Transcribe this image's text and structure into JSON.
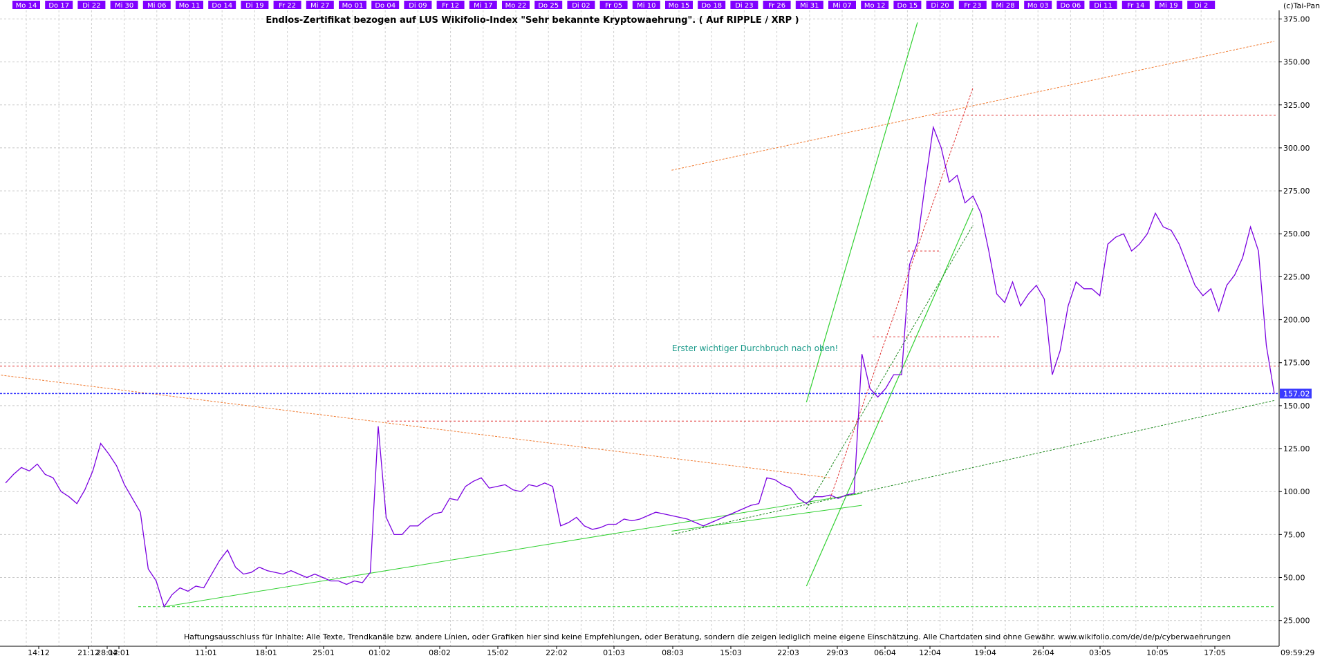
{
  "chart_data": {
    "type": "line",
    "title": "Endlos-Zertifikat bezogen auf LUS Wikifolio-Index \"Sehr bekannte Kryptowaehrung\". ( Auf RIPPLE / XRP )",
    "copyright": "(c)Tai-Pan",
    "annotation": "Erster wichtiger Durchbruch nach oben!",
    "disclaimer": "Haftungsausschluss für Inhalte: Alle Texte, Trendkanäle bzw. andere Linien, oder Grafiken hier sind keine Empfehlungen, oder Beratung, sondern die zeigen lediglich meine eigene Einschätzung. Alle Chartdaten sind ohne Gewähr.  www.wikifolio.com/de/de/p/cyberwaehrungen",
    "time_label": "09:59:29",
    "last_value_label": "157.02",
    "last_value": 157.02,
    "ylim": [
      10,
      380
    ],
    "y_ticks": [
      "25.000",
      "50.00",
      "75.00",
      "100.00",
      "125.00",
      "150.00",
      "175.00",
      "200.00",
      "225.00",
      "250.00",
      "275.00",
      "300.00",
      "325.00",
      "350.00",
      "375.00"
    ],
    "day_labels": [
      "Mo 14",
      "Do 17",
      "Di 22",
      "Mi 30",
      "Mi 06",
      "Mo 11",
      "Do 14",
      "Di 19",
      "Fr 22",
      "Mi 27",
      "Mo 01",
      "Do 04",
      "Di 09",
      "Fr 12",
      "Mi 17",
      "Mo 22",
      "Do 25",
      "Di 02",
      "Fr 05",
      "Mi 10",
      "Mo 15",
      "Do 18",
      "Di 23",
      "Fr 26",
      "Mi 31",
      "Mi 07",
      "Mo 12",
      "Do 15",
      "Di 20",
      "Fr 23",
      "Mi 28",
      "Mo 03",
      "Do 06",
      "Di 11",
      "Fr 14",
      "Mi 19",
      "Di 2"
    ],
    "date_labels": [
      "14:12",
      "21:12",
      "28:12",
      "04:01",
      "11:01",
      "18:01",
      "25:01",
      "01:02",
      "08:02",
      "15:02",
      "22:02",
      "01:03",
      "08:03",
      "15:03",
      "22:03",
      "29:03",
      "06:04",
      "12:04",
      "19:04",
      "26:04",
      "03:05",
      "10:05",
      "17:05"
    ],
    "x_index_range": [
      0,
      160
    ],
    "series": [
      {
        "values": [
          [
            0,
            105
          ],
          [
            1,
            110
          ],
          [
            2,
            114
          ],
          [
            3,
            112
          ],
          [
            4,
            116
          ],
          [
            5,
            110
          ],
          [
            6,
            108
          ],
          [
            7,
            100
          ],
          [
            8,
            97
          ],
          [
            9,
            93
          ],
          [
            10,
            101
          ],
          [
            11,
            112
          ],
          [
            12,
            128
          ],
          [
            13,
            122
          ],
          [
            14,
            115
          ],
          [
            15,
            104
          ],
          [
            16,
            96
          ],
          [
            17,
            88
          ],
          [
            18,
            55
          ],
          [
            19,
            48
          ],
          [
            20,
            33
          ],
          [
            21,
            40
          ],
          [
            22,
            44
          ],
          [
            23,
            42
          ],
          [
            24,
            45
          ],
          [
            25,
            44
          ],
          [
            26,
            52
          ],
          [
            27,
            60
          ],
          [
            28,
            66
          ],
          [
            29,
            56
          ],
          [
            30,
            52
          ],
          [
            31,
            53
          ],
          [
            32,
            56
          ],
          [
            33,
            54
          ],
          [
            34,
            53
          ],
          [
            35,
            52
          ],
          [
            36,
            54
          ],
          [
            37,
            52
          ],
          [
            38,
            50
          ],
          [
            39,
            52
          ],
          [
            40,
            50
          ],
          [
            41,
            48
          ],
          [
            42,
            48
          ],
          [
            43,
            46
          ],
          [
            44,
            48
          ],
          [
            45,
            47
          ],
          [
            46,
            53
          ],
          [
            47,
            138
          ],
          [
            48,
            85
          ],
          [
            49,
            75
          ],
          [
            50,
            75
          ],
          [
            51,
            80
          ],
          [
            52,
            80
          ],
          [
            53,
            84
          ],
          [
            54,
            87
          ],
          [
            55,
            88
          ],
          [
            56,
            96
          ],
          [
            57,
            95
          ],
          [
            58,
            103
          ],
          [
            59,
            106
          ],
          [
            60,
            108
          ],
          [
            61,
            102
          ],
          [
            62,
            103
          ],
          [
            63,
            104
          ],
          [
            64,
            101
          ],
          [
            65,
            100
          ],
          [
            66,
            104
          ],
          [
            67,
            103
          ],
          [
            68,
            105
          ],
          [
            69,
            103
          ],
          [
            70,
            80
          ],
          [
            71,
            82
          ],
          [
            72,
            85
          ],
          [
            73,
            80
          ],
          [
            74,
            78
          ],
          [
            75,
            79
          ],
          [
            76,
            81
          ],
          [
            77,
            81
          ],
          [
            78,
            84
          ],
          [
            79,
            83
          ],
          [
            80,
            84
          ],
          [
            81,
            86
          ],
          [
            82,
            88
          ],
          [
            83,
            87
          ],
          [
            84,
            86
          ],
          [
            85,
            85
          ],
          [
            86,
            84
          ],
          [
            87,
            82
          ],
          [
            88,
            80
          ],
          [
            89,
            82
          ],
          [
            90,
            84
          ],
          [
            91,
            86
          ],
          [
            92,
            88
          ],
          [
            93,
            90
          ],
          [
            94,
            92
          ],
          [
            95,
            93
          ],
          [
            96,
            108
          ],
          [
            97,
            107
          ],
          [
            98,
            104
          ],
          [
            99,
            102
          ],
          [
            100,
            96
          ],
          [
            101,
            93
          ],
          [
            102,
            97
          ],
          [
            103,
            97
          ],
          [
            104,
            98
          ],
          [
            105,
            96
          ],
          [
            106,
            98
          ],
          [
            107,
            99
          ],
          [
            108,
            180
          ],
          [
            109,
            160
          ],
          [
            110,
            155
          ],
          [
            111,
            160
          ],
          [
            112,
            168
          ],
          [
            113,
            168
          ],
          [
            114,
            232
          ],
          [
            115,
            245
          ],
          [
            116,
            280
          ],
          [
            117,
            312
          ],
          [
            118,
            300
          ],
          [
            119,
            280
          ],
          [
            120,
            284
          ],
          [
            121,
            268
          ],
          [
            122,
            272
          ],
          [
            123,
            262
          ],
          [
            124,
            240
          ],
          [
            125,
            215
          ],
          [
            126,
            210
          ],
          [
            127,
            222
          ],
          [
            128,
            208
          ],
          [
            129,
            215
          ],
          [
            130,
            220
          ],
          [
            131,
            212
          ],
          [
            132,
            168
          ],
          [
            133,
            182
          ],
          [
            134,
            208
          ],
          [
            135,
            222
          ],
          [
            136,
            218
          ],
          [
            137,
            218
          ],
          [
            138,
            214
          ],
          [
            139,
            244
          ],
          [
            140,
            248
          ],
          [
            141,
            250
          ],
          [
            142,
            240
          ],
          [
            143,
            244
          ],
          [
            144,
            250
          ],
          [
            145,
            262
          ],
          [
            146,
            254
          ],
          [
            147,
            252
          ],
          [
            148,
            244
          ],
          [
            149,
            232
          ],
          [
            150,
            220
          ],
          [
            151,
            214
          ],
          [
            152,
            218
          ],
          [
            153,
            205
          ],
          [
            154,
            220
          ],
          [
            155,
            226
          ],
          [
            156,
            236
          ],
          [
            157,
            254
          ],
          [
            158,
            240
          ],
          [
            159,
            185
          ],
          [
            160,
            157
          ]
        ]
      }
    ],
    "horizontal_levels": [
      {
        "value": 157.02,
        "style": "blue-dotted"
      },
      {
        "value": 173,
        "style": "red-dotted"
      },
      {
        "value": 141,
        "style": "red-dotted"
      },
      {
        "value": 190,
        "style": "red-dotted"
      },
      {
        "value": 319,
        "style": "red-dotted"
      },
      {
        "value": 240,
        "style": "red-dotted"
      },
      {
        "value": 33,
        "style": "green-dashed"
      }
    ]
  }
}
